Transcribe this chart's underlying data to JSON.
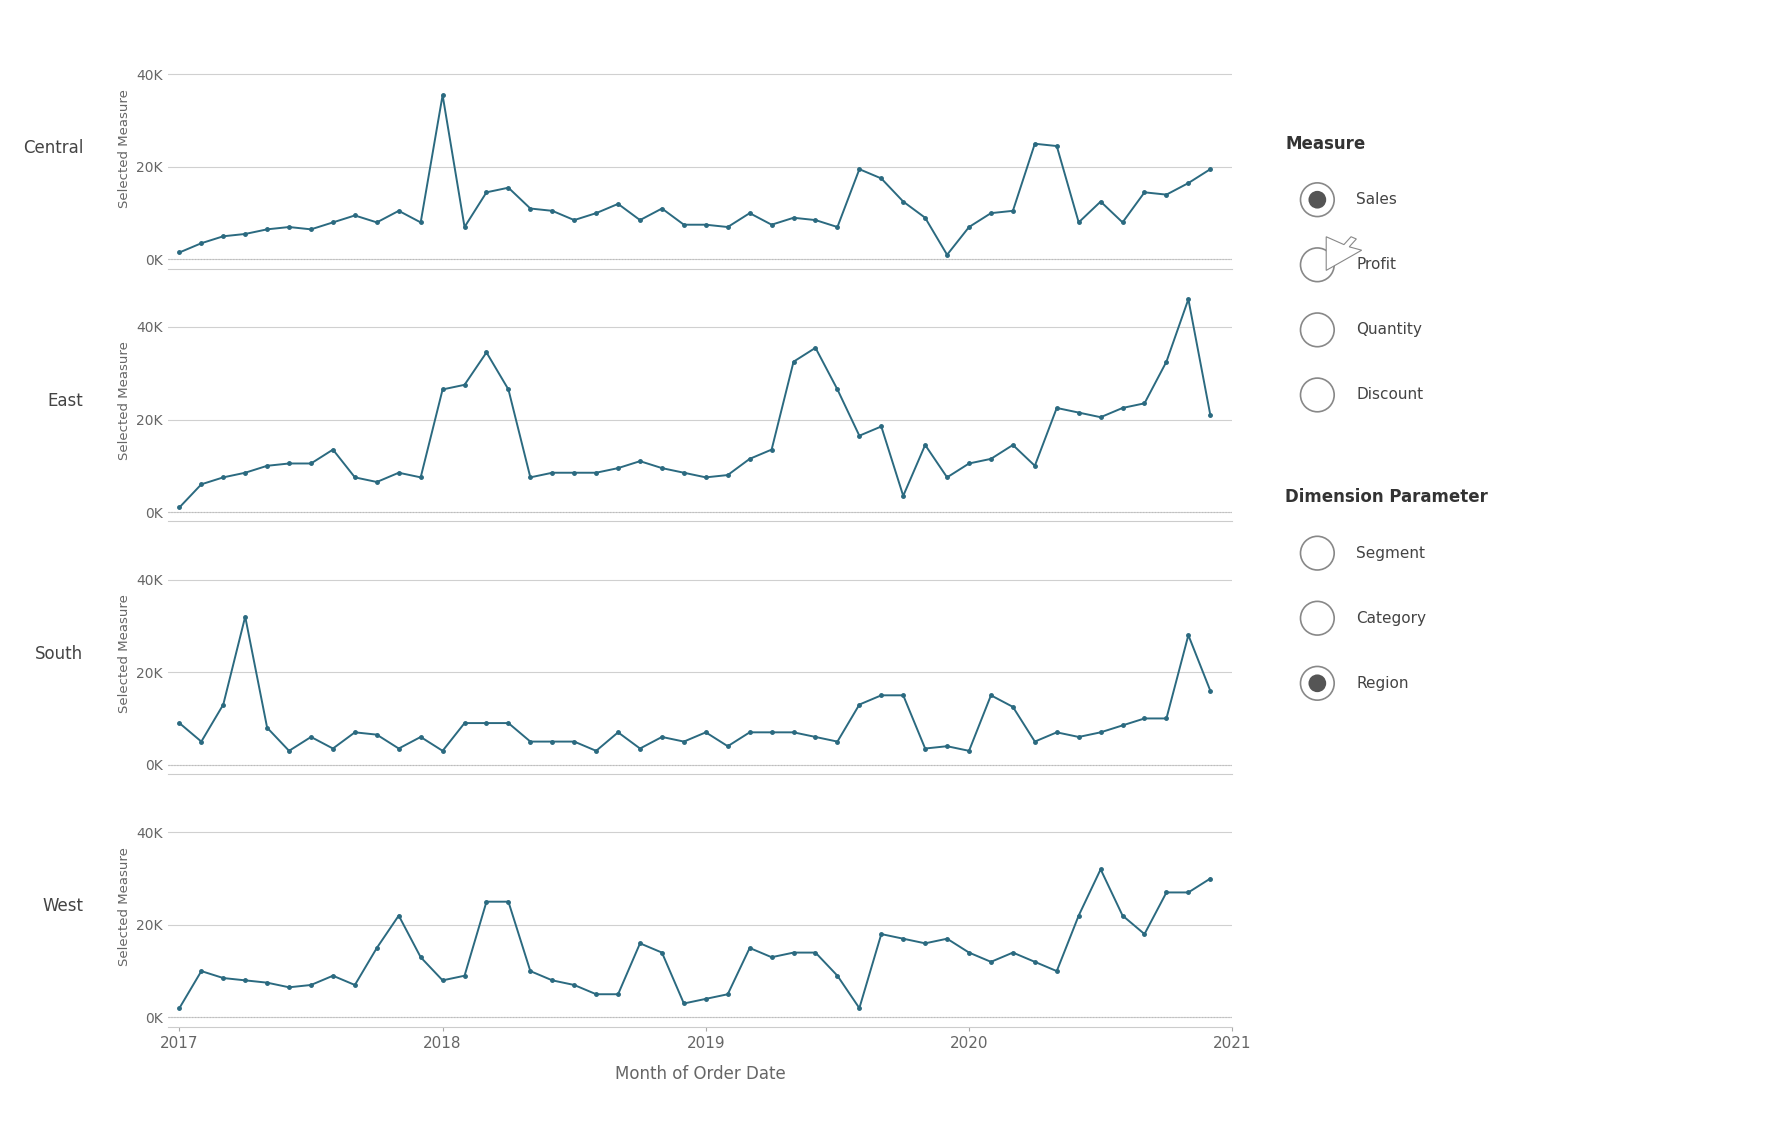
{
  "xlabel": "Month of Order Date",
  "ylabel": "Selected Measure",
  "line_color": "#2b6a80",
  "bg_color": "#ffffff",
  "panel_bg": "#ffffff",
  "grid_color": "#d0d0d0",
  "grid_color_dashed": "#bbbbbb",
  "label_color": "#666666",
  "regions": [
    "Central",
    "East",
    "South",
    "West"
  ],
  "dates_x": [
    0,
    1,
    2,
    3,
    4,
    5,
    6,
    7,
    8,
    9,
    10,
    11,
    12,
    13,
    14,
    15,
    16,
    17,
    18,
    19,
    20,
    21,
    22,
    23,
    24,
    25,
    26,
    27,
    28,
    29,
    30,
    31,
    32,
    33,
    34,
    35,
    36,
    37,
    38,
    39,
    40,
    41,
    42,
    43,
    44,
    45,
    46,
    47
  ],
  "Central": [
    1500,
    3500,
    5000,
    5500,
    6500,
    7000,
    6500,
    8000,
    9500,
    8000,
    10500,
    8000,
    35500,
    7000,
    14500,
    15500,
    11000,
    10500,
    8500,
    10000,
    12000,
    8500,
    11000,
    7500,
    7500,
    7000,
    10000,
    7500,
    9000,
    8500,
    7000,
    19500,
    17500,
    12500,
    9000,
    1000,
    7000,
    10000,
    10500,
    25000,
    24500,
    8000,
    12500,
    8000,
    14500,
    14000,
    16500,
    19500
  ],
  "East": [
    1000,
    6000,
    7500,
    8500,
    10000,
    10500,
    10500,
    13500,
    7500,
    6500,
    8500,
    7500,
    26500,
    27500,
    34500,
    26500,
    7500,
    8500,
    8500,
    8500,
    9500,
    11000,
    9500,
    8500,
    7500,
    8000,
    11500,
    13500,
    32500,
    35500,
    26500,
    16500,
    18500,
    3500,
    14500,
    7500,
    10500,
    11500,
    14500,
    10000,
    22500,
    21500,
    20500,
    22500,
    23500,
    32500,
    46000,
    21000
  ],
  "South": [
    9000,
    5000,
    13000,
    32000,
    8000,
    3000,
    6000,
    3500,
    7000,
    6500,
    3500,
    6000,
    3000,
    9000,
    9000,
    9000,
    5000,
    5000,
    5000,
    3000,
    7000,
    3500,
    6000,
    5000,
    7000,
    4000,
    7000,
    7000,
    7000,
    6000,
    5000,
    13000,
    15000,
    15000,
    3500,
    4000,
    3000,
    15000,
    12500,
    5000,
    7000,
    6000,
    7000,
    8500,
    10000,
    10000,
    28000,
    16000
  ],
  "West": [
    2000,
    10000,
    8500,
    8000,
    7500,
    6500,
    7000,
    9000,
    7000,
    15000,
    22000,
    13000,
    8000,
    9000,
    25000,
    25000,
    10000,
    8000,
    7000,
    5000,
    5000,
    16000,
    14000,
    3000,
    4000,
    5000,
    15000,
    13000,
    14000,
    14000,
    9000,
    2000,
    18000,
    17000,
    16000,
    17000,
    14000,
    12000,
    14000,
    12000,
    10000,
    22000,
    32000,
    22000,
    18000,
    27000,
    27000,
    30000
  ],
  "measure_items": [
    "Sales",
    "Profit",
    "Quantity",
    "Discount"
  ],
  "measure_selected": "Sales",
  "dimension_items": [
    "Segment",
    "Category",
    "Region"
  ],
  "dimension_selected": "Region",
  "legend_title_color": "#333333",
  "legend_item_color": "#444444",
  "yticks": [
    0,
    20000,
    40000
  ],
  "ytick_labels": [
    "0K",
    "20K",
    "40K"
  ],
  "ylim": [
    -2000,
    50000
  ],
  "year_ticks_x": [
    0,
    12,
    24,
    36,
    48
  ],
  "year_tick_labels": [
    "2017",
    "2018",
    "2019",
    "2020",
    "2021"
  ]
}
